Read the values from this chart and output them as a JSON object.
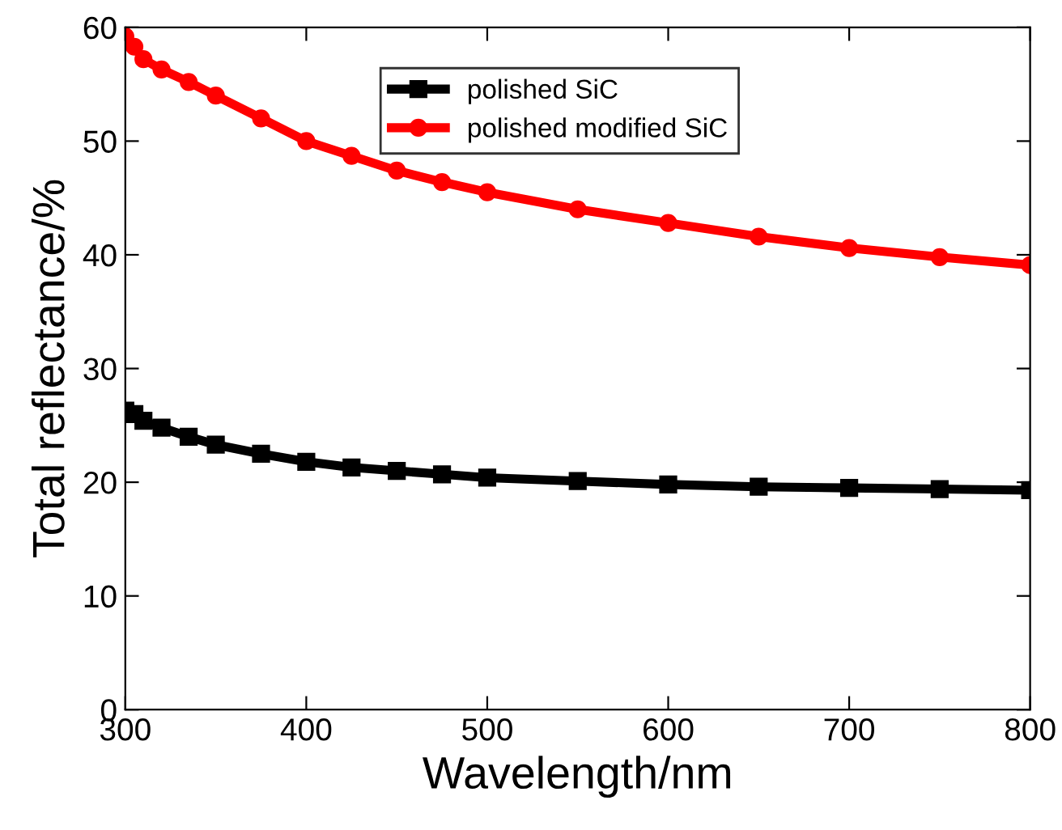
{
  "chart_data": {
    "type": "line",
    "xlabel": "Wavelength/nm",
    "ylabel": "Total reflectance/%",
    "x": [
      300,
      305,
      310,
      320,
      335,
      350,
      375,
      400,
      425,
      450,
      475,
      500,
      550,
      600,
      650,
      700,
      750,
      800
    ],
    "series": [
      {
        "name": "polished SiC",
        "color": "#000000",
        "marker": "square",
        "values": [
          26.3,
          26.0,
          25.4,
          24.8,
          24.0,
          23.3,
          22.5,
          21.8,
          21.3,
          21.0,
          20.7,
          20.4,
          20.1,
          19.8,
          19.6,
          19.5,
          19.4,
          19.3
        ]
      },
      {
        "name": "polished modified SiC",
        "color": "#ff0000",
        "marker": "circle",
        "values": [
          59.2,
          58.3,
          57.2,
          56.3,
          55.2,
          54.0,
          52.0,
          50.0,
          48.7,
          47.4,
          46.4,
          45.5,
          44.0,
          42.8,
          41.6,
          40.6,
          39.8,
          39.1
        ]
      }
    ],
    "xlim": [
      300,
      800
    ],
    "ylim": [
      0,
      60
    ],
    "xticks": [
      300,
      400,
      500,
      600,
      700,
      800
    ],
    "yticks": [
      0,
      10,
      20,
      30,
      40,
      50,
      60
    ],
    "grid": false,
    "legend": "top",
    "line_style": "solid"
  }
}
